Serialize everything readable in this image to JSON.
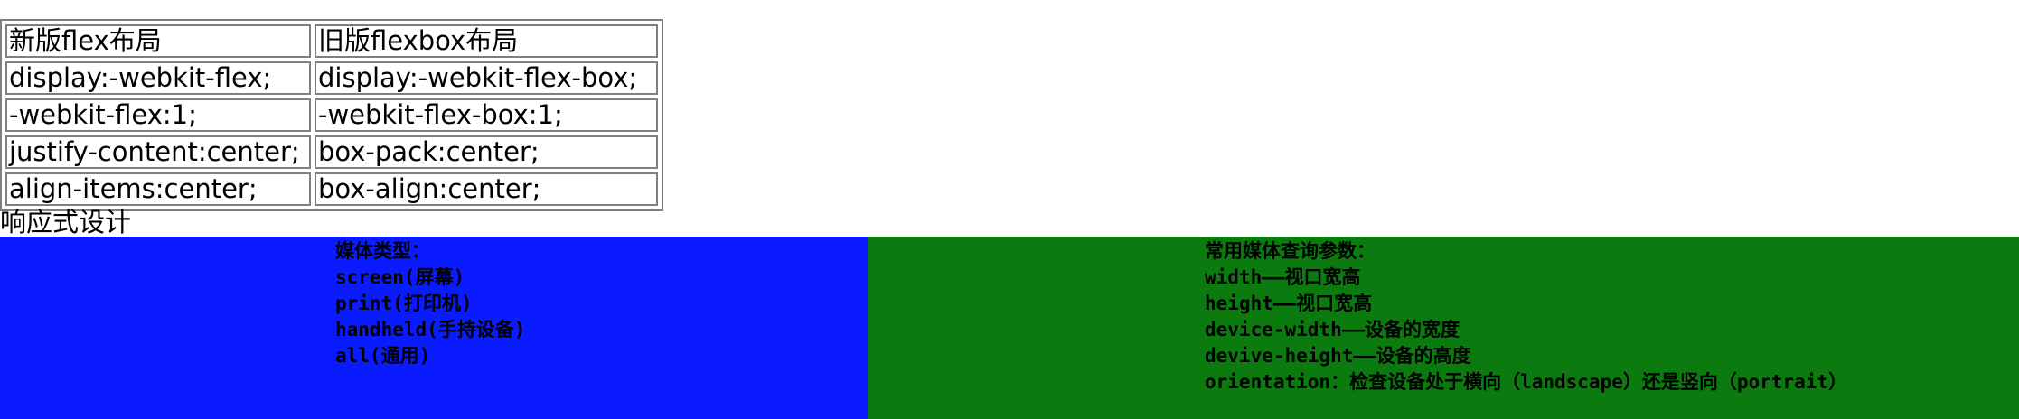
{
  "flex_table": {
    "headers": [
      "新版flex布局",
      "旧版flexbox布局"
    ],
    "rows": [
      [
        "display:-webkit-flex;",
        "display:-webkit-flex-box;"
      ],
      [
        "-webkit-flex:1;",
        "-webkit-flex-box:1;"
      ],
      [
        "justify-content:center;",
        "box-pack:center;"
      ],
      [
        "align-items:center;",
        "box-align:center;"
      ]
    ]
  },
  "section_title": "响应式设计",
  "media_types": {
    "color": "#0a1bff",
    "lines": [
      "媒体类型：",
      "screen(屏幕)",
      "print(打印机)",
      "handheld(手持设备)",
      "all(通用)"
    ]
  },
  "media_params": {
    "color": "#0b7a0f",
    "lines": [
      "常用媒体查询参数：",
      "width——视口宽高",
      "height——视口宽高",
      "device-width——设备的宽度",
      "devive-height——设备的高度",
      "orientation：检查设备处于横向（landscape）还是竖向（portrait）"
    ]
  }
}
